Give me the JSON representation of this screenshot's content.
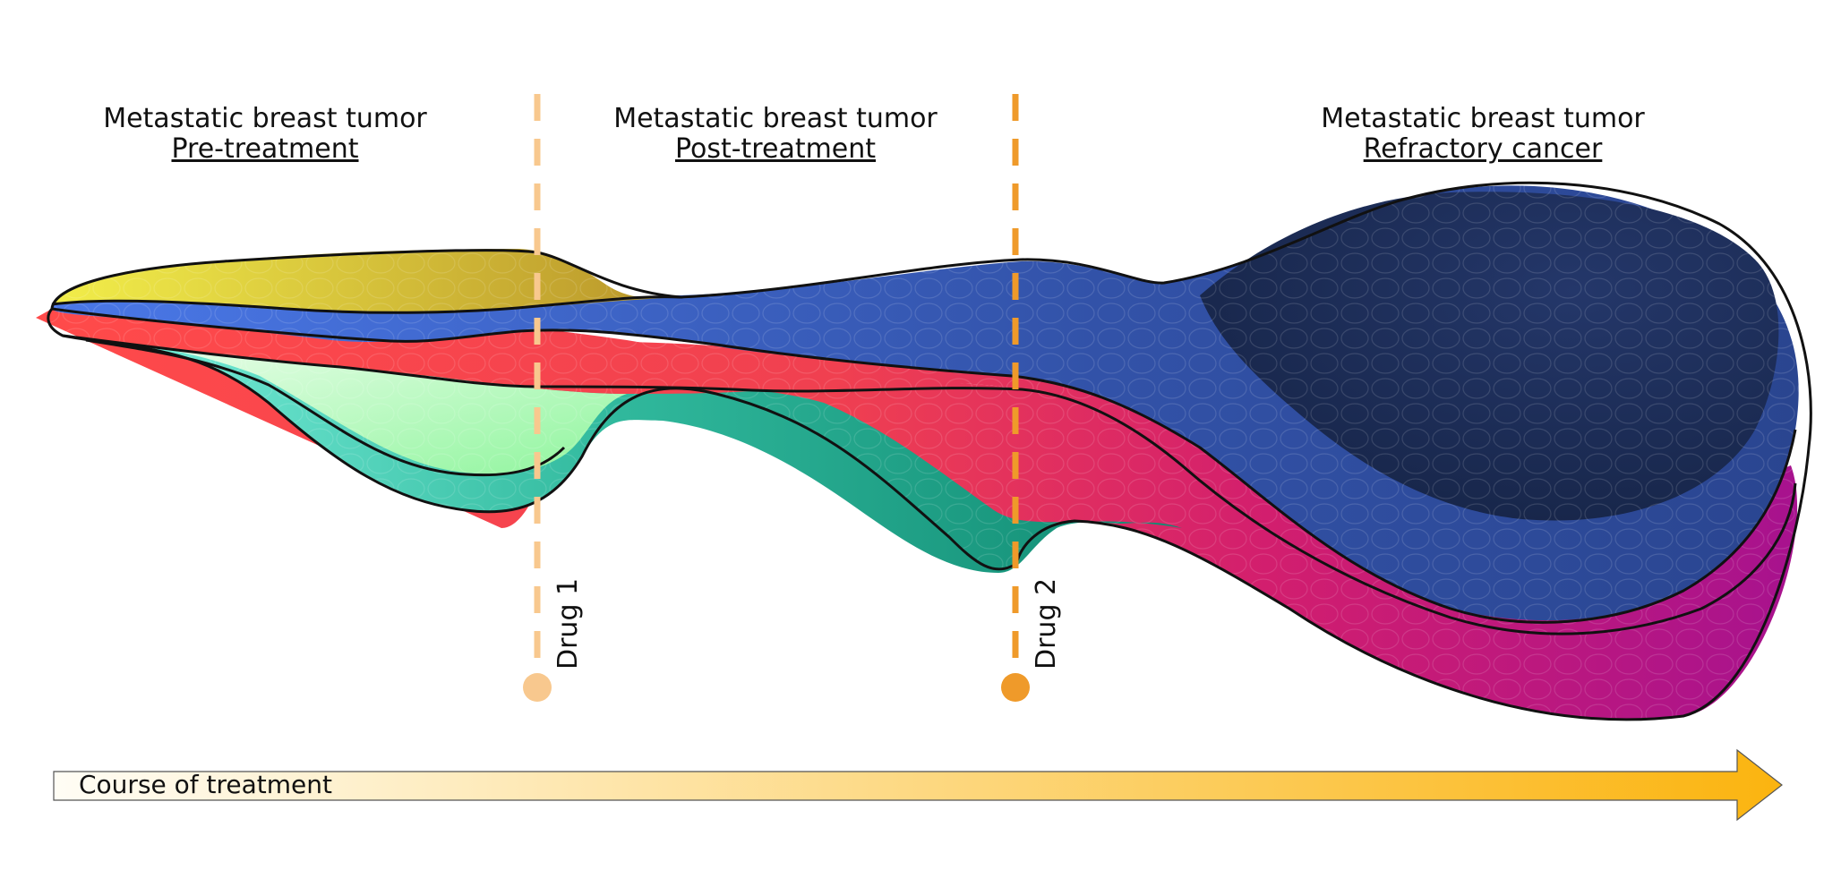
{
  "stages": [
    {
      "title": "Metastatic breast tumor",
      "subtitle": "Pre-treatment"
    },
    {
      "title": "Metastatic breast tumor",
      "subtitle": "Post-treatment"
    },
    {
      "title": "Metastatic breast tumor",
      "subtitle": "Refractory cancer"
    }
  ],
  "drugs": [
    {
      "label": "Drug 1",
      "color": "#f8c88e"
    },
    {
      "label": "Drug 2",
      "color": "#ef9a2a"
    }
  ],
  "axis": {
    "label": "Course of treatment",
    "gradient_start": "#fffdf5",
    "gradient_end": "#fbb40f"
  },
  "clones": [
    {
      "name": "yellow-clone",
      "color": "#d4c23a"
    },
    {
      "name": "blue-clone",
      "color": "#3558b3"
    },
    {
      "name": "red-clone",
      "color": "#f04050"
    },
    {
      "name": "light-green-clone",
      "color": "#b6f7b8"
    },
    {
      "name": "teal-clone",
      "color": "#2aaa8e"
    },
    {
      "name": "magenta-clone",
      "color": "#c11a7a"
    },
    {
      "name": "navy-core",
      "color": "#1a2a4e"
    }
  ]
}
